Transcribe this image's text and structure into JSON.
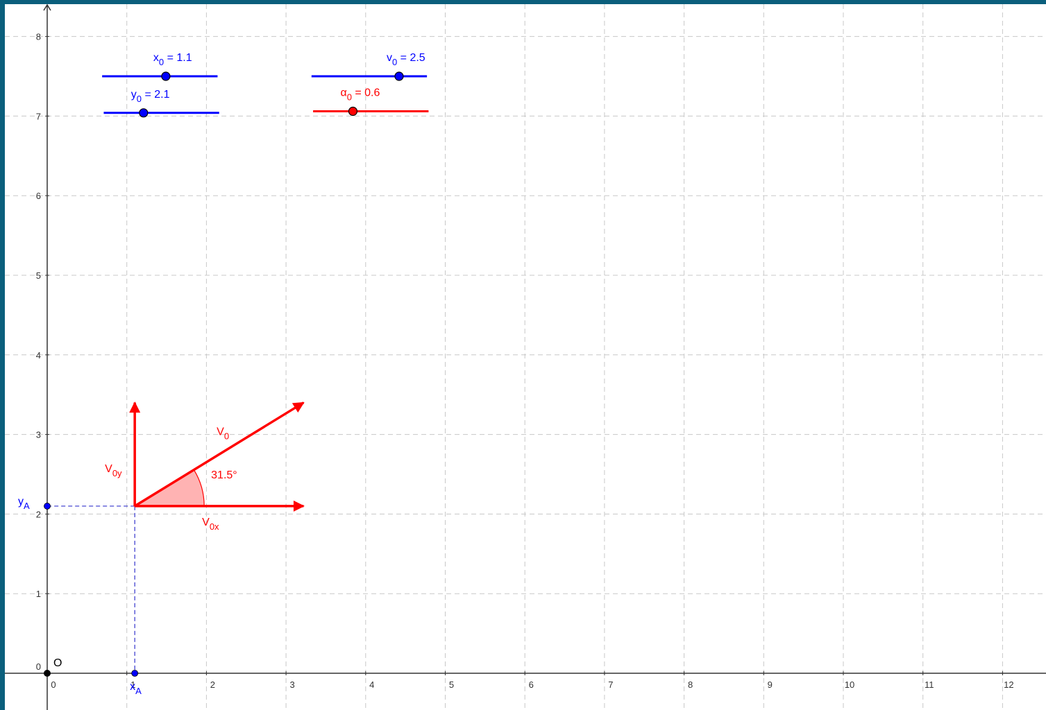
{
  "chart_data": {
    "type": "diagram",
    "xlim": [
      -0.6,
      12.5
    ],
    "ylim": [
      -0.45,
      8.4
    ],
    "x_ticks": [
      0,
      1,
      2,
      3,
      4,
      5,
      6,
      7,
      8,
      9,
      10,
      11,
      12
    ],
    "y_ticks": [
      0,
      1,
      2,
      3,
      4,
      5,
      6,
      7,
      8
    ],
    "grid": true,
    "origin_label": "O",
    "sliders": [
      {
        "name": "x0",
        "base": "x",
        "sub": "0",
        "value_text": " = 1.1",
        "from": [
          0.69,
          7.5
        ],
        "to": [
          2.14,
          7.5
        ],
        "knob": [
          1.49,
          7.5
        ],
        "color": "#0000ff"
      },
      {
        "name": "y0",
        "base": "y",
        "sub": "0",
        "value_text": " = 2.1",
        "from": [
          0.71,
          7.04
        ],
        "to": [
          2.16,
          7.04
        ],
        "knob": [
          1.21,
          7.04
        ],
        "color": "#0000ff"
      },
      {
        "name": "v0",
        "base": "v",
        "sub": "0",
        "value_text": " = 2.5",
        "from": [
          3.32,
          7.5
        ],
        "to": [
          4.77,
          7.5
        ],
        "knob": [
          4.42,
          7.5
        ],
        "color": "#0000ff"
      },
      {
        "name": "alpha0",
        "base": "α",
        "sub": "0",
        "value_text": " = 0.6",
        "from": [
          3.34,
          7.06
        ],
        "to": [
          4.79,
          7.06
        ],
        "knob": [
          3.84,
          7.06
        ],
        "color": "#ff0000"
      }
    ],
    "point_A": {
      "x": 1.1,
      "y": 2.1
    },
    "x_A_label": {
      "base": "x",
      "sub": "A"
    },
    "y_A_label": {
      "base": "y",
      "sub": "A"
    },
    "v0_vector": {
      "to": [
        3.22,
        3.4
      ],
      "base": "V",
      "sub": "0"
    },
    "v0x_vector": {
      "to": [
        3.22,
        2.1
      ],
      "base": "V",
      "sub": "0x"
    },
    "v0y_vector": {
      "to": [
        1.1,
        3.4
      ],
      "base": "V",
      "sub": "0y"
    },
    "angle": {
      "degrees": 31.5,
      "label": "31.5°"
    },
    "colors": {
      "red": "#ff0000",
      "blue": "#0000ff",
      "dashed_blue": "#3333cc",
      "grid": "#c8c8c8",
      "angle_fill": "#ffb3b3"
    }
  }
}
